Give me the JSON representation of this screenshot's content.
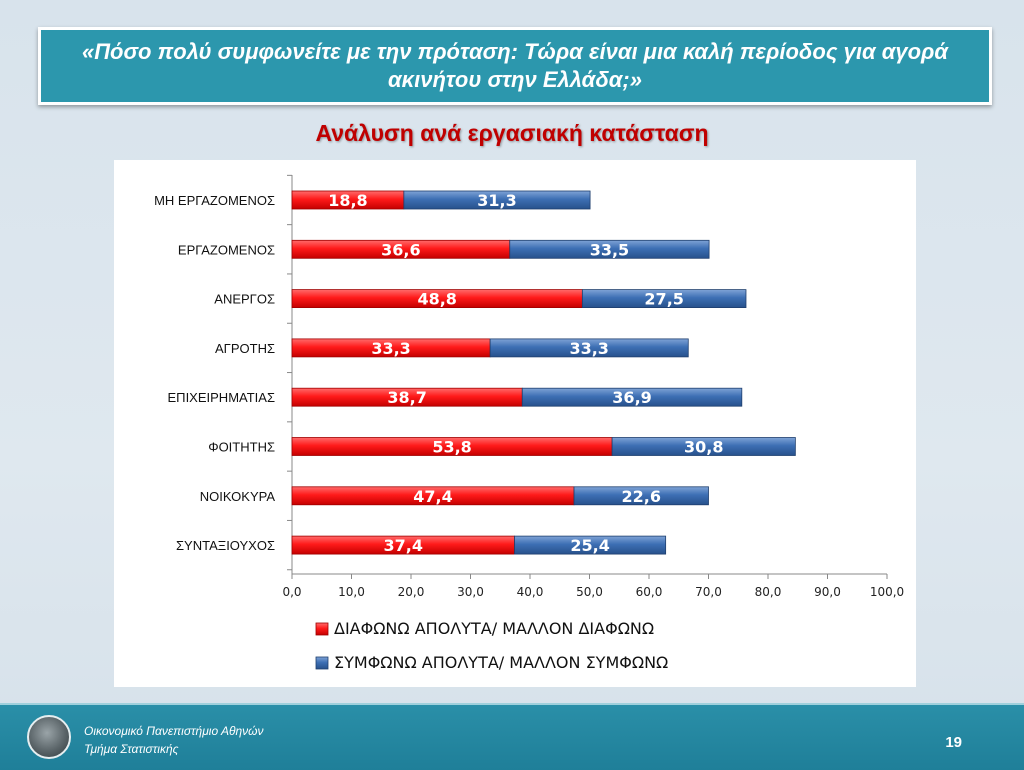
{
  "header": {
    "question": "«Πόσο πολύ συμφωνείτε με την πρόταση: Τώρα είναι μια καλή περίοδος για αγορά ακινήτου στην Ελλάδα;»",
    "subtitle": "Ανάλυση ανά εργασιακή κατάσταση"
  },
  "chart_data": {
    "type": "bar",
    "orientation": "horizontal",
    "stacked": true,
    "categories": [
      "ΜΗ ΕΡΓΑΖΟΜΕΝΟΣ",
      "ΕΡΓΑΖΟΜΕΝΟΣ",
      "ΑΝΕΡΓΟΣ",
      "ΑΓΡΟΤΗΣ",
      "ΕΠΙΧΕΙΡΗΜΑΤΙΑΣ",
      "ΦΟΙΤΗΤΗΣ",
      "ΝΟΙΚΟΚΥΡΑ",
      "ΣΥΝΤΑΞΙΟΥΧΟΣ"
    ],
    "series": [
      {
        "name": "ΔΙΑΦΩΝΩ ΑΠΟΛΥΤΑ/ ΜΑΛΛΟΝ ΔΙΑΦΩΝΩ",
        "color": "#ff1a1a",
        "values": [
          18.8,
          36.6,
          48.8,
          33.3,
          38.7,
          53.8,
          47.4,
          37.4
        ],
        "labels": [
          "18,8",
          "36,6",
          "48,8",
          "33,3",
          "38,7",
          "53,8",
          "47,4",
          "37,4"
        ]
      },
      {
        "name": "ΣΥΜΦΩΝΩ ΑΠΟΛΥΤΑ/ ΜΑΛΛΟΝ ΣΥΜΦΩΝΩ",
        "color": "#3d6fb4",
        "values": [
          31.3,
          33.5,
          27.5,
          33.3,
          36.9,
          30.8,
          22.6,
          25.4
        ],
        "labels": [
          "31,3",
          "33,5",
          "27,5",
          "33,3",
          "36,9",
          "30,8",
          "22,6",
          "25,4"
        ]
      }
    ],
    "xlim": [
      0,
      100
    ],
    "xticks": [
      "0,0",
      "10,0",
      "20,0",
      "30,0",
      "40,0",
      "50,0",
      "60,0",
      "70,0",
      "80,0",
      "90,0",
      "100,0"
    ],
    "grid": false,
    "legend_position": "bottom"
  },
  "footer": {
    "line1": "Οικονομικό Πανεπιστήμιο Αθηνών",
    "line2": "Τμήμα Στατιστικής",
    "page": "19"
  }
}
